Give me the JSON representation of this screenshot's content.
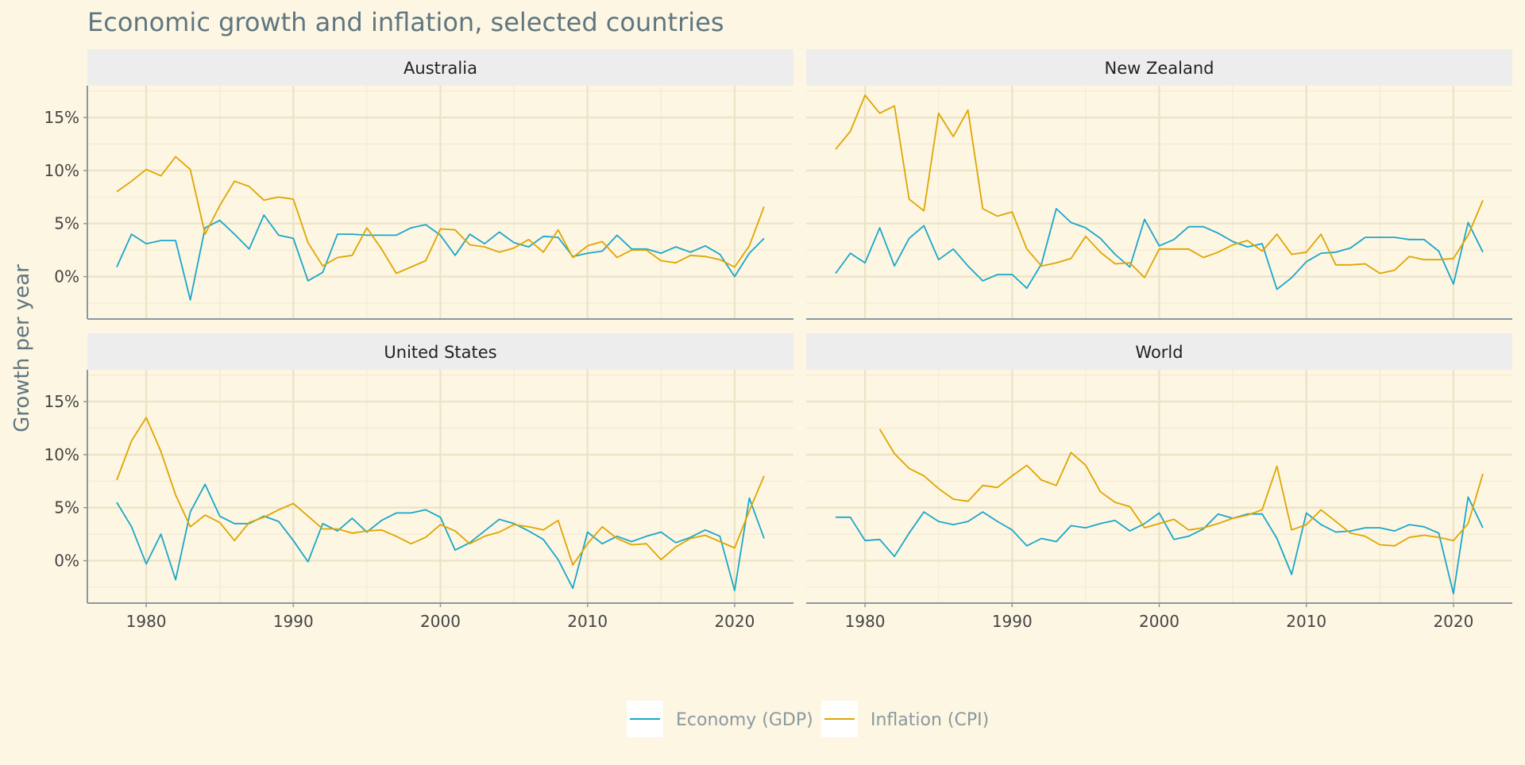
{
  "chart_data": {
    "type": "line",
    "title": "Economic growth and inflation, selected countries",
    "ylabel": "Growth per year",
    "xlabel": "",
    "xlim": [
      1976,
      2024
    ],
    "ylim": [
      -4,
      18
    ],
    "x_ticks": [
      1980,
      1990,
      2000,
      2010,
      2020
    ],
    "x_tick_labels": [
      "1980",
      "1990",
      "2000",
      "2010",
      "2020"
    ],
    "y_ticks": [
      0,
      5,
      10,
      15
    ],
    "y_tick_labels": [
      "0%",
      "5%",
      "10%",
      "15%"
    ],
    "grid": true,
    "legend_position": "bottom",
    "legend": [
      {
        "name": "Economy (GDP)",
        "color": "#1aa7c9"
      },
      {
        "name": "Inflation (CPI)",
        "color": "#e0a500"
      }
    ],
    "panels": [
      {
        "name": "Australia",
        "series": [
          {
            "name": "Economy (GDP)",
            "color": "#1aa7c9",
            "x_start": 1978,
            "values": [
              0.9,
              4.0,
              3.1,
              3.4,
              3.4,
              -2.2,
              4.6,
              5.3,
              4.0,
              2.6,
              5.8,
              3.9,
              3.6,
              -0.4,
              0.4,
              4.0,
              4.0,
              3.9,
              3.9,
              3.9,
              4.6,
              4.9,
              3.9,
              2.0,
              4.0,
              3.1,
              4.2,
              3.2,
              2.8,
              3.8,
              3.7,
              1.9,
              2.2,
              2.4,
              3.9,
              2.6,
              2.6,
              2.2,
              2.8,
              2.3,
              2.9,
              2.1,
              0.0,
              2.2,
              3.6
            ]
          },
          {
            "name": "Inflation (CPI)",
            "color": "#e0a500",
            "x_start": 1978,
            "values": [
              8.0,
              9.0,
              10.1,
              9.5,
              11.3,
              10.1,
              4.0,
              6.7,
              9.0,
              8.5,
              7.2,
              7.5,
              7.3,
              3.2,
              1.0,
              1.8,
              2.0,
              4.6,
              2.6,
              0.3,
              0.9,
              1.5,
              4.5,
              4.4,
              3.0,
              2.8,
              2.3,
              2.7,
              3.5,
              2.3,
              4.4,
              1.8,
              2.9,
              3.3,
              1.8,
              2.5,
              2.5,
              1.5,
              1.3,
              2.0,
              1.9,
              1.6,
              0.9,
              2.9,
              6.6
            ]
          }
        ]
      },
      {
        "name": "New Zealand",
        "series": [
          {
            "name": "Economy (GDP)",
            "color": "#1aa7c9",
            "x_start": 1978,
            "values": [
              0.3,
              2.2,
              1.3,
              4.6,
              1.0,
              3.6,
              4.8,
              1.6,
              2.6,
              1.0,
              -0.4,
              0.2,
              0.2,
              -1.1,
              1.2,
              6.4,
              5.1,
              4.6,
              3.6,
              2.1,
              0.9,
              5.4,
              2.9,
              3.5,
              4.7,
              4.7,
              4.1,
              3.3,
              2.8,
              3.1,
              -1.2,
              -0.1,
              1.4,
              2.2,
              2.3,
              2.7,
              3.7,
              3.7,
              3.7,
              3.5,
              3.5,
              2.4,
              -0.7,
              5.1,
              2.3
            ]
          },
          {
            "name": "Inflation (CPI)",
            "color": "#e0a500",
            "x_start": 1978,
            "values": [
              12.0,
              13.7,
              17.1,
              15.4,
              16.1,
              7.3,
              6.2,
              15.4,
              13.2,
              15.7,
              6.4,
              5.7,
              6.1,
              2.6,
              1.0,
              1.3,
              1.7,
              3.8,
              2.3,
              1.2,
              1.3,
              -0.1,
              2.6,
              2.6,
              2.6,
              1.8,
              2.3,
              3.0,
              3.4,
              2.4,
              4.0,
              2.1,
              2.3,
              4.0,
              1.1,
              1.1,
              1.2,
              0.3,
              0.6,
              1.9,
              1.6,
              1.6,
              1.7,
              3.9,
              7.2
            ]
          }
        ]
      },
      {
        "name": "United States",
        "series": [
          {
            "name": "Economy (GDP)",
            "color": "#1aa7c9",
            "x_start": 1978,
            "values": [
              5.5,
              3.2,
              -0.3,
              2.5,
              -1.8,
              4.6,
              7.2,
              4.2,
              3.5,
              3.5,
              4.2,
              3.7,
              1.9,
              -0.1,
              3.5,
              2.8,
              4.0,
              2.7,
              3.8,
              4.5,
              4.5,
              4.8,
              4.1,
              1.0,
              1.7,
              2.8,
              3.9,
              3.5,
              2.8,
              2.0,
              0.1,
              -2.6,
              2.7,
              1.6,
              2.3,
              1.8,
              2.3,
              2.7,
              1.7,
              2.2,
              2.9,
              2.3,
              -2.8,
              5.9,
              2.1
            ]
          },
          {
            "name": "Inflation (CPI)",
            "color": "#e0a500",
            "x_start": 1978,
            "values": [
              7.6,
              11.3,
              13.5,
              10.3,
              6.2,
              3.2,
              4.3,
              3.6,
              1.9,
              3.6,
              4.1,
              4.8,
              5.4,
              4.2,
              3.0,
              3.0,
              2.6,
              2.8,
              2.9,
              2.3,
              1.6,
              2.2,
              3.4,
              2.8,
              1.6,
              2.3,
              2.7,
              3.4,
              3.2,
              2.9,
              3.8,
              -0.4,
              1.6,
              3.2,
              2.1,
              1.5,
              1.6,
              0.1,
              1.3,
              2.1,
              2.4,
              1.8,
              1.2,
              4.7,
              8.0
            ]
          }
        ]
      },
      {
        "name": "World",
        "series": [
          {
            "name": "Economy (GDP)",
            "color": "#1aa7c9",
            "x_start": 1978,
            "values": [
              4.1,
              4.1,
              1.9,
              2.0,
              0.4,
              2.6,
              4.6,
              3.7,
              3.4,
              3.7,
              4.6,
              3.7,
              2.9,
              1.4,
              2.1,
              1.8,
              3.3,
              3.1,
              3.5,
              3.8,
              2.8,
              3.5,
              4.5,
              2.0,
              2.3,
              3.0,
              4.4,
              4.0,
              4.4,
              4.4,
              2.1,
              -1.3,
              4.5,
              3.4,
              2.7,
              2.8,
              3.1,
              3.1,
              2.8,
              3.4,
              3.2,
              2.6,
              -3.1,
              6.0,
              3.1
            ]
          },
          {
            "name": "Inflation (CPI)",
            "color": "#e0a500",
            "x_start": 1981,
            "values": [
              12.4,
              10.1,
              8.7,
              8.0,
              6.8,
              5.8,
              5.6,
              7.1,
              6.9,
              8.0,
              9.0,
              7.6,
              7.1,
              10.2,
              9.0,
              6.5,
              5.5,
              5.1,
              3.1,
              3.5,
              3.9,
              2.9,
              3.1,
              3.5,
              4.0,
              4.3,
              4.8,
              8.9,
              2.9,
              3.4,
              4.8,
              3.7,
              2.6,
              2.3,
              1.5,
              1.4,
              2.2,
              2.4,
              2.2,
              1.9,
              3.5,
              8.2
            ]
          }
        ]
      }
    ]
  }
}
